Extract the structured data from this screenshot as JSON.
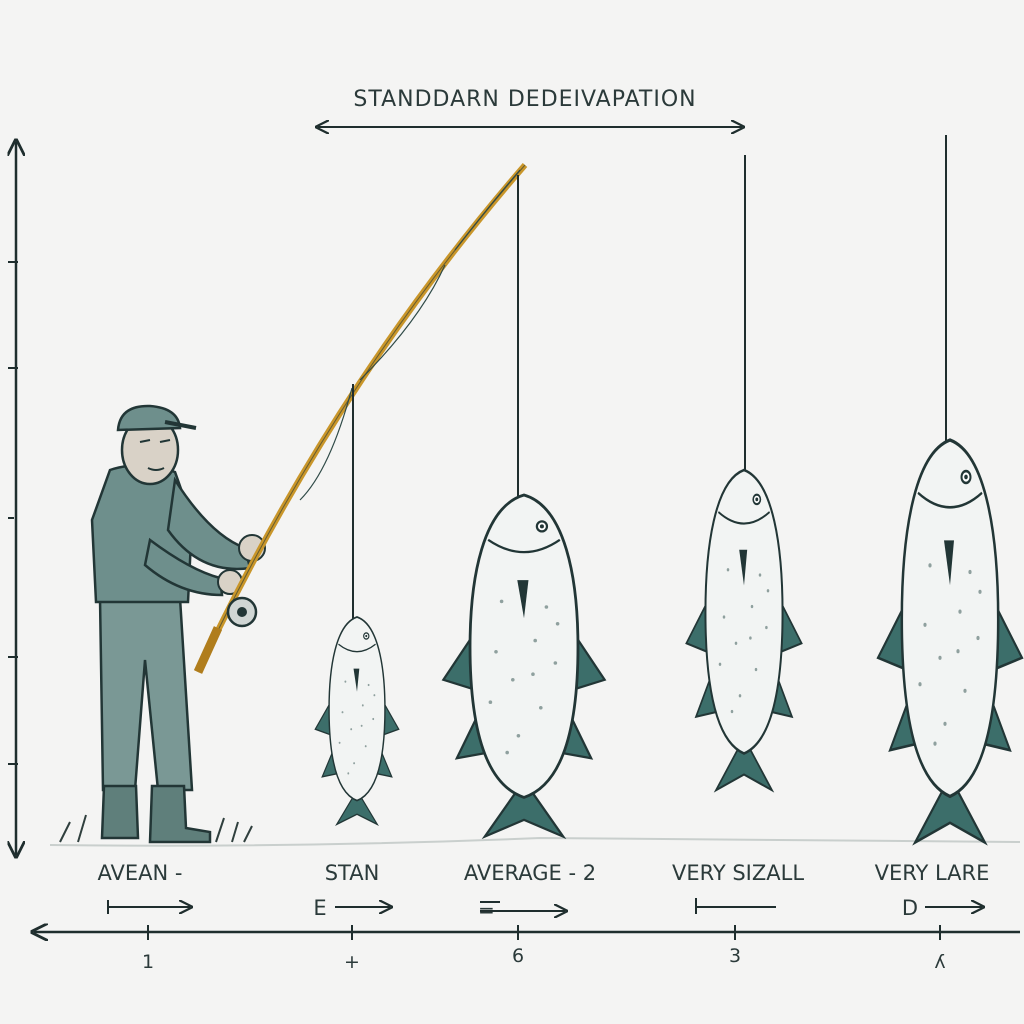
{
  "title": "STANDDARN DEDEIVAPATION",
  "categories": [
    {
      "label": "AVEAN -",
      "tick": "1"
    },
    {
      "label": "STAN",
      "tick": "+"
    },
    {
      "label": "AVERAGE - 2",
      "tick": "6"
    },
    {
      "label": "VERY SIZALL",
      "tick": "3"
    },
    {
      "label": "VERY LARE",
      "tick": "ʎ"
    }
  ],
  "marks": [
    "E",
    "=",
    "D"
  ],
  "colors": {
    "ink": "#1f2e2e",
    "fin": "#3c6e6a",
    "rod": "#c9962a",
    "clothes": "#6e8f8c"
  },
  "icons": [
    "fisherman-icon",
    "fishing-rod-icon",
    "fish-icon"
  ]
}
